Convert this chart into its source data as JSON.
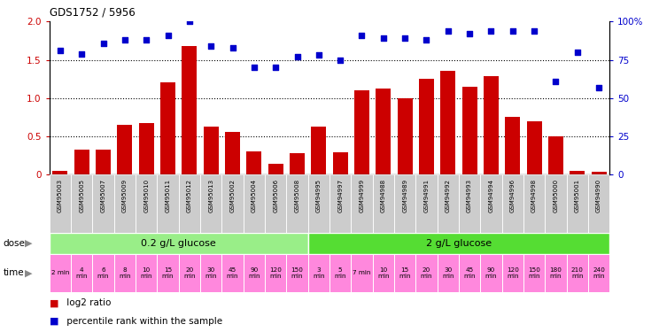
{
  "title": "GDS1752 / 5956",
  "samples": [
    "GSM95003",
    "GSM95005",
    "GSM95007",
    "GSM95009",
    "GSM95010",
    "GSM95011",
    "GSM95012",
    "GSM95013",
    "GSM95002",
    "GSM95004",
    "GSM95006",
    "GSM95008",
    "GSM94995",
    "GSM94997",
    "GSM94999",
    "GSM94988",
    "GSM94989",
    "GSM94991",
    "GSM94992",
    "GSM94993",
    "GSM94994",
    "GSM94996",
    "GSM94998",
    "GSM95000",
    "GSM95001",
    "GSM94990"
  ],
  "log2_ratio": [
    0.04,
    0.32,
    0.32,
    0.65,
    0.67,
    1.2,
    1.68,
    0.62,
    0.56,
    0.3,
    0.14,
    0.28,
    0.62,
    0.29,
    1.1,
    1.12,
    1.0,
    1.25,
    1.35,
    1.15,
    1.28,
    0.75,
    0.7,
    0.5,
    0.05,
    0.03
  ],
  "percentile_rank": [
    81,
    79,
    86,
    88,
    88,
    91,
    100,
    84,
    83,
    70,
    70,
    77,
    78,
    75,
    91,
    89,
    89,
    88,
    94,
    92,
    94,
    94,
    94,
    61,
    80,
    57
  ],
  "bar_color": "#cc0000",
  "dot_color": "#0000cc",
  "dose_green_light": "#99ee88",
  "dose_green_bright": "#55dd33",
  "time_pink": "#ff88dd",
  "time_border": "#ffffff",
  "dose_label_0": "0.2 g/L glucose",
  "dose_label_1": "2 g/L glucose",
  "dose_split": 12,
  "time_labels_0": [
    "2 min",
    "4\nmin",
    "6\nmin",
    "8\nmin",
    "10\nmin",
    "15\nmin",
    "20\nmin",
    "30\nmin",
    "45\nmin",
    "90\nmin",
    "120\nmin",
    "150\nmin"
  ],
  "time_labels_1": [
    "3\nmin",
    "5\nmin",
    "7 min",
    "10\nmin",
    "15\nmin",
    "20\nmin",
    "30\nmin",
    "45\nmin",
    "90\nmin",
    "120\nmin",
    "150\nmin",
    "180\nmin",
    "210\nmin",
    "240\nmin"
  ],
  "ylim_left": [
    0,
    2
  ],
  "ylim_right": [
    0,
    100
  ],
  "yticks_left": [
    0,
    0.5,
    1.0,
    1.5,
    2.0
  ],
  "yticks_right": [
    0,
    25,
    50,
    75,
    100
  ],
  "ytick_labels_right": [
    "0",
    "25",
    "50",
    "75",
    "100%"
  ],
  "sample_bg": "#cccccc",
  "fig_width": 7.44,
  "fig_height": 3.75,
  "dpi": 100
}
